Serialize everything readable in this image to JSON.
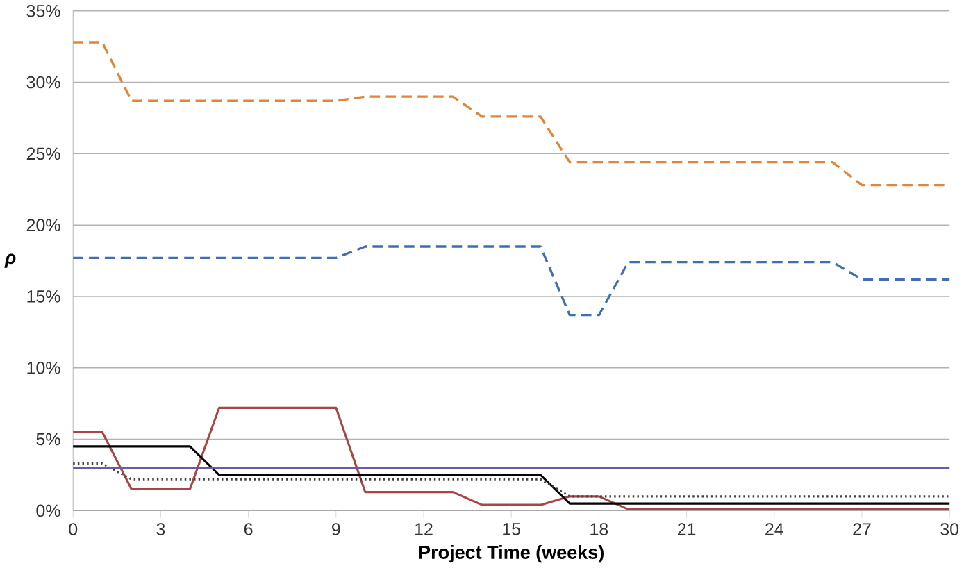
{
  "chart_data": {
    "type": "line",
    "xlabel": "Project Time (weeks)",
    "ylabel": "ρ",
    "x": [
      0,
      1,
      2,
      3,
      4,
      5,
      6,
      7,
      8,
      9,
      10,
      11,
      12,
      13,
      14,
      15,
      16,
      17,
      18,
      19,
      20,
      21,
      22,
      23,
      24,
      25,
      26,
      27,
      28,
      29,
      30
    ],
    "xlim": [
      0,
      30
    ],
    "xticks": [
      0,
      3,
      6,
      9,
      12,
      15,
      18,
      21,
      24,
      27,
      30
    ],
    "ylim": [
      0,
      35
    ],
    "yticks": [
      {
        "value": 0,
        "label": "0%"
      },
      {
        "value": 5,
        "label": "5%"
      },
      {
        "value": 10,
        "label": "10%"
      },
      {
        "value": 15,
        "label": "15%"
      },
      {
        "value": 20,
        "label": "20%"
      },
      {
        "value": 25,
        "label": "25%"
      },
      {
        "value": 30,
        "label": "30%"
      },
      {
        "value": 35,
        "label": "35%"
      }
    ],
    "grid": "y",
    "marker": "none",
    "series": [
      {
        "color": "#e0853a",
        "line_style": "dashed",
        "values": [
          32.8,
          32.8,
          28.7,
          28.7,
          28.7,
          28.7,
          28.7,
          28.7,
          28.7,
          28.7,
          29.0,
          29.0,
          29.0,
          29.0,
          27.6,
          27.6,
          27.6,
          24.4,
          24.4,
          24.4,
          24.4,
          24.4,
          24.4,
          24.4,
          24.4,
          24.4,
          24.4,
          22.8,
          22.8,
          22.8,
          22.8
        ]
      },
      {
        "color": "#3f6fae",
        "line_style": "dashed",
        "values": [
          17.7,
          17.7,
          17.7,
          17.7,
          17.7,
          17.7,
          17.7,
          17.7,
          17.7,
          17.7,
          18.5,
          18.5,
          18.5,
          18.5,
          18.5,
          18.5,
          18.5,
          13.7,
          13.7,
          17.4,
          17.4,
          17.4,
          17.4,
          17.4,
          17.4,
          17.4,
          17.4,
          16.2,
          16.2,
          16.2,
          16.2
        ]
      },
      {
        "color": "#a94544",
        "line_style": "solid",
        "values": [
          5.5,
          5.5,
          1.5,
          1.5,
          1.5,
          7.2,
          7.2,
          7.2,
          7.2,
          7.2,
          1.3,
          1.3,
          1.3,
          1.3,
          0.4,
          0.4,
          0.4,
          1.0,
          1.0,
          0.1,
          0.1,
          0.1,
          0.1,
          0.1,
          0.1,
          0.1,
          0.1,
          0.1,
          0.1,
          0.1,
          0.1
        ]
      },
      {
        "color": "#000000",
        "line_style": "solid",
        "values": [
          4.5,
          4.5,
          4.5,
          4.5,
          4.5,
          2.5,
          2.5,
          2.5,
          2.5,
          2.5,
          2.5,
          2.5,
          2.5,
          2.5,
          2.5,
          2.5,
          2.5,
          0.5,
          0.5,
          0.5,
          0.5,
          0.5,
          0.5,
          0.5,
          0.5,
          0.5,
          0.5,
          0.5,
          0.5,
          0.5,
          0.5
        ]
      },
      {
        "color": "#404040",
        "line_style": "dotted",
        "values": [
          3.3,
          3.3,
          2.2,
          2.2,
          2.2,
          2.2,
          2.2,
          2.2,
          2.2,
          2.2,
          2.2,
          2.2,
          2.2,
          2.2,
          2.2,
          2.2,
          2.2,
          1.0,
          1.0,
          1.0,
          1.0,
          1.0,
          1.0,
          1.0,
          1.0,
          1.0,
          1.0,
          1.0,
          1.0,
          1.0,
          1.0
        ]
      },
      {
        "color": "#6f5aa0",
        "line_style": "solid",
        "values": [
          3.0,
          3.0,
          3.0,
          3.0,
          3.0,
          3.0,
          3.0,
          3.0,
          3.0,
          3.0,
          3.0,
          3.0,
          3.0,
          3.0,
          3.0,
          3.0,
          3.0,
          3.0,
          3.0,
          3.0,
          3.0,
          3.0,
          3.0,
          3.0,
          3.0,
          3.0,
          3.0,
          3.0,
          3.0,
          3.0,
          3.0
        ]
      }
    ]
  }
}
